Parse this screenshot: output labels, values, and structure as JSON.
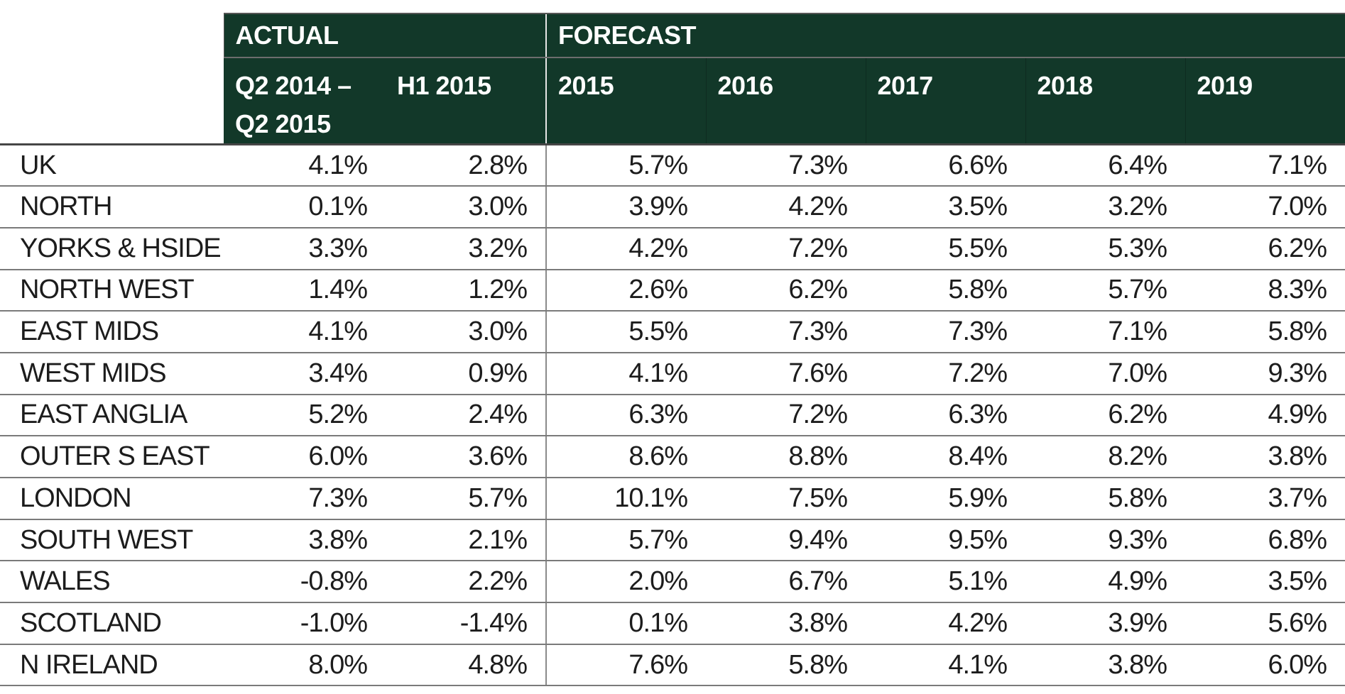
{
  "header": {
    "actual_label": "ACTUAL",
    "forecast_label": "FORECAST",
    "actual_columns": {
      "q2_line1": "Q2 2014 –",
      "q2_line2": "Q2 2015",
      "h1": "H1 2015"
    },
    "forecast_years": [
      "2015",
      "2016",
      "2017",
      "2018",
      "2019"
    ]
  },
  "rows": [
    {
      "region": "UK",
      "actual": [
        "4.1%",
        "2.8%"
      ],
      "forecast": [
        "5.7%",
        "7.3%",
        "6.6%",
        "6.4%",
        "7.1%"
      ]
    },
    {
      "region": "NORTH",
      "actual": [
        "0.1%",
        "3.0%"
      ],
      "forecast": [
        "3.9%",
        "4.2%",
        "3.5%",
        "3.2%",
        "7.0%"
      ]
    },
    {
      "region": "YORKS & HSIDE",
      "actual": [
        "3.3%",
        "3.2%"
      ],
      "forecast": [
        "4.2%",
        "7.2%",
        "5.5%",
        "5.3%",
        "6.2%"
      ]
    },
    {
      "region": "NORTH WEST",
      "actual": [
        "1.4%",
        "1.2%"
      ],
      "forecast": [
        "2.6%",
        "6.2%",
        "5.8%",
        "5.7%",
        "8.3%"
      ]
    },
    {
      "region": "EAST MIDS",
      "actual": [
        "4.1%",
        "3.0%"
      ],
      "forecast": [
        "5.5%",
        "7.3%",
        "7.3%",
        "7.1%",
        "5.8%"
      ]
    },
    {
      "region": "WEST MIDS",
      "actual": [
        "3.4%",
        "0.9%"
      ],
      "forecast": [
        "4.1%",
        "7.6%",
        "7.2%",
        "7.0%",
        "9.3%"
      ]
    },
    {
      "region": "EAST ANGLIA",
      "actual": [
        "5.2%",
        "2.4%"
      ],
      "forecast": [
        "6.3%",
        "7.2%",
        "6.3%",
        "6.2%",
        "4.9%"
      ]
    },
    {
      "region": "OUTER S EAST",
      "actual": [
        "6.0%",
        "3.6%"
      ],
      "forecast": [
        "8.6%",
        "8.8%",
        "8.4%",
        "8.2%",
        "3.8%"
      ]
    },
    {
      "region": "LONDON",
      "actual": [
        "7.3%",
        "5.7%"
      ],
      "forecast": [
        "10.1%",
        "7.5%",
        "5.9%",
        "5.8%",
        "3.7%"
      ]
    },
    {
      "region": "SOUTH WEST",
      "actual": [
        "3.8%",
        "2.1%"
      ],
      "forecast": [
        "5.7%",
        "9.4%",
        "9.5%",
        "9.3%",
        "6.8%"
      ]
    },
    {
      "region": "WALES",
      "actual": [
        "-0.8%",
        "2.2%"
      ],
      "forecast": [
        "2.0%",
        "6.7%",
        "5.1%",
        "4.9%",
        "3.5%"
      ]
    },
    {
      "region": "SCOTLAND",
      "actual": [
        "-1.0%",
        "-1.4%"
      ],
      "forecast": [
        "0.1%",
        "3.8%",
        "4.2%",
        "3.9%",
        "5.6%"
      ]
    },
    {
      "region": "N IRELAND",
      "actual": [
        "8.0%",
        "4.8%"
      ],
      "forecast": [
        "7.6%",
        "5.8%",
        "4.1%",
        "3.8%",
        "6.0%"
      ]
    }
  ],
  "colors": {
    "header_green": "#123829",
    "header_text": "#ffffff",
    "body_text": "#1c1c1c",
    "row_line": "#7a7a7a",
    "divider_header": "#e6e6e6",
    "divider_data": "#8a8a8a"
  }
}
